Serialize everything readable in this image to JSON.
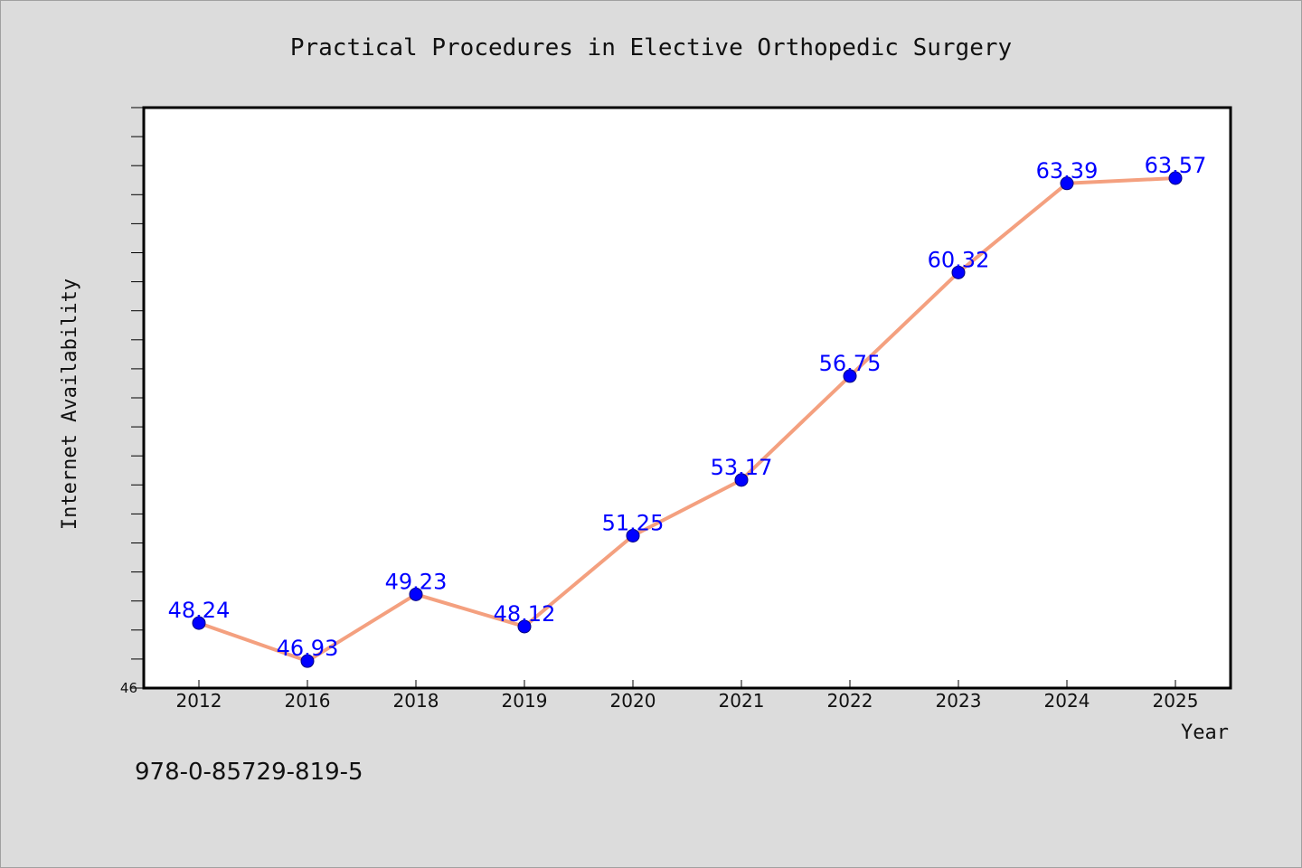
{
  "chart_data": {
    "type": "line",
    "title": "Practical Procedures in Elective Orthopedic Surgery",
    "xlabel": "Year",
    "ylabel": "Internet Availability",
    "categories": [
      "2012",
      "2016",
      "2018",
      "2019",
      "2020",
      "2021",
      "2022",
      "2023",
      "2024",
      "2025"
    ],
    "series": [
      {
        "values": [
          48.24,
          46.93,
          49.23,
          48.12,
          51.25,
          53.17,
          56.75,
          60.32,
          63.39,
          63.57
        ],
        "labels": [
          "48.24",
          "46.93",
          "49.23",
          "48.12",
          "51.25",
          "53.17",
          "56.75",
          "60.32",
          "63.39",
          "63.57"
        ],
        "line_color": "#f4a07f",
        "marker_color": "#0000ff"
      }
    ],
    "ylim": [
      46,
      66
    ],
    "y_tick_labels": [
      {
        "value": 46,
        "label": "46"
      }
    ],
    "grid": false,
    "legend": "none",
    "footnote": "978-0-85729-819-5",
    "background_color": "#dcdcdc",
    "plot_background_color": "#ffffff"
  }
}
